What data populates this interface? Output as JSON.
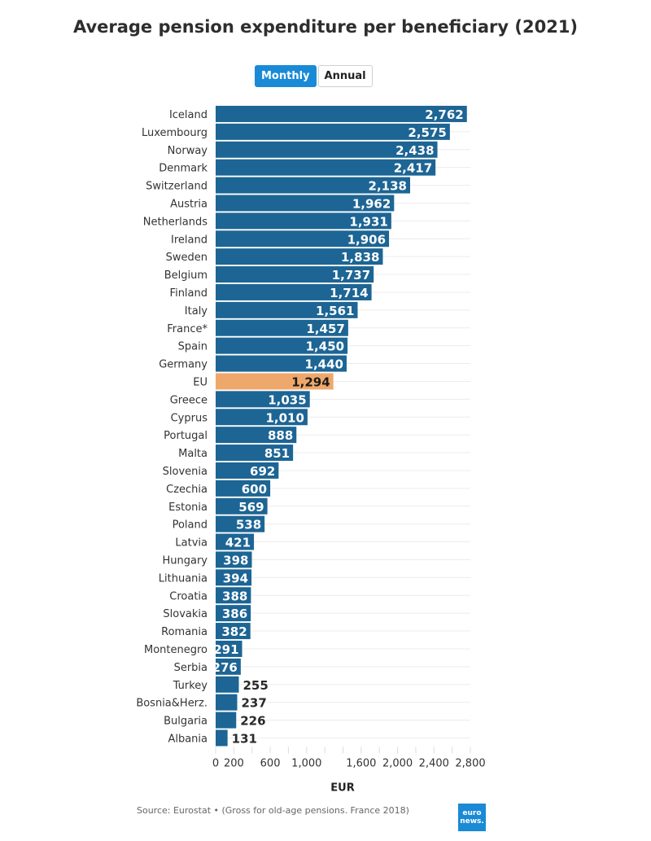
{
  "chart_data": {
    "type": "bar",
    "orientation": "horizontal",
    "title": "Average pension expenditure per beneficiary (2021)",
    "xlabel": "EUR",
    "ylabel": "",
    "xlim": [
      0,
      2800
    ],
    "x_ticks": [
      0,
      200,
      400,
      600,
      800,
      1000,
      1200,
      1400,
      1600,
      1800,
      2000,
      2200,
      2400,
      2600,
      2800
    ],
    "x_tick_labels": {
      "0": "0",
      "200": "200",
      "600": "600",
      "1000": "1,000",
      "1600": "1,600",
      "2000": "2,000",
      "2400": "2,400",
      "2800": "2,800"
    },
    "grid": true,
    "categories": [
      "Iceland",
      "Luxembourg",
      "Norway",
      "Denmark",
      "Switzerland",
      "Austria",
      "Netherlands",
      "Ireland",
      "Sweden",
      "Belgium",
      "Finland",
      "Italy",
      "France*",
      "Spain",
      "Germany",
      "EU",
      "Greece",
      "Cyprus",
      "Portugal",
      "Malta",
      "Slovenia",
      "Czechia",
      "Estonia",
      "Poland",
      "Latvia",
      "Hungary",
      "Lithuania",
      "Croatia",
      "Slovakia",
      "Romania",
      "Montenegro",
      "Serbia",
      "Turkey",
      "Bosnia&Herz.",
      "Bulgaria",
      "Albania"
    ],
    "values": [
      2762,
      2575,
      2438,
      2417,
      2138,
      1962,
      1931,
      1906,
      1838,
      1737,
      1714,
      1561,
      1457,
      1450,
      1440,
      1294,
      1035,
      1010,
      888,
      851,
      692,
      600,
      569,
      538,
      421,
      398,
      394,
      388,
      386,
      382,
      291,
      276,
      255,
      237,
      226,
      131
    ],
    "highlight": "EU",
    "colors": {
      "bar": "#1d6594",
      "highlight": "#efa86b",
      "label_inside": "#ffffff",
      "label_outside": "#2a2a2a"
    }
  },
  "toggle": {
    "options": [
      "Monthly",
      "Annual"
    ],
    "selected": "Monthly"
  },
  "footer": {
    "source": "Source: Eurostat • (Gross for old-age pensions. France 2018)",
    "logo_line1": "euro",
    "logo_line2": "news."
  }
}
